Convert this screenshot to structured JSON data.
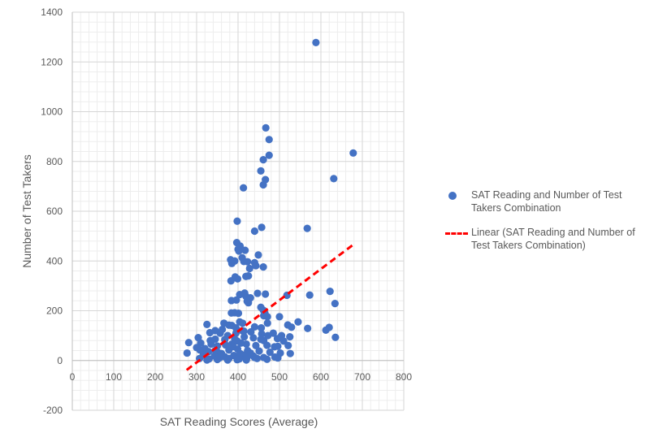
{
  "chart_data": {
    "type": "scatter",
    "title": "",
    "xlabel": "SAT Reading Scores (Average)",
    "ylabel": "Number of Test Takers",
    "xlim": [
      0,
      800
    ],
    "ylim": [
      -200,
      1400
    ],
    "x_ticks": [
      "0",
      "100",
      "200",
      "300",
      "400",
      "500",
      "600",
      "700",
      "800"
    ],
    "y_ticks": [
      "-200",
      "0",
      "200",
      "400",
      "600",
      "800",
      "1000",
      "1200",
      "1400"
    ],
    "grid": true,
    "legend_position": "right",
    "series": [
      {
        "name": "SAT Reading and Number of Test Takers Combination",
        "color": "#4472C4",
        "marker": "circle",
        "points": [
          [
            588,
            1278
          ],
          [
            678,
            834
          ],
          [
            631,
            731
          ],
          [
            467,
            935
          ],
          [
            475,
            888
          ],
          [
            475,
            825
          ],
          [
            461,
            807
          ],
          [
            455,
            762
          ],
          [
            466,
            727
          ],
          [
            461,
            706
          ],
          [
            413,
            694
          ],
          [
            398,
            560
          ],
          [
            567,
            531
          ],
          [
            457,
            535
          ],
          [
            440,
            520
          ],
          [
            397,
            474
          ],
          [
            405,
            460
          ],
          [
            400,
            447
          ],
          [
            417,
            443
          ],
          [
            402,
            440
          ],
          [
            449,
            424
          ],
          [
            382,
            405
          ],
          [
            392,
            400
          ],
          [
            410,
            413
          ],
          [
            414,
            398
          ],
          [
            423,
            397
          ],
          [
            440,
            393
          ],
          [
            461,
            376
          ],
          [
            385,
            390
          ],
          [
            443,
            381
          ],
          [
            428,
            370
          ],
          [
            419,
            338
          ],
          [
            425,
            340
          ],
          [
            393,
            336
          ],
          [
            399,
            328
          ],
          [
            383,
            320
          ],
          [
            622,
            278
          ],
          [
            404,
            265
          ],
          [
            416,
            271
          ],
          [
            447,
            270
          ],
          [
            466,
            267
          ],
          [
            518,
            262
          ],
          [
            573,
            263
          ],
          [
            419,
            258
          ],
          [
            430,
            252
          ],
          [
            384,
            241
          ],
          [
            396,
            243
          ],
          [
            422,
            238
          ],
          [
            425,
            232
          ],
          [
            634,
            229
          ],
          [
            455,
            214
          ],
          [
            461,
            202
          ],
          [
            384,
            191
          ],
          [
            392,
            192
          ],
          [
            401,
            190
          ],
          [
            465,
            190
          ],
          [
            462,
            180
          ],
          [
            471,
            176
          ],
          [
            500,
            176
          ],
          [
            545,
            155
          ],
          [
            404,
            155
          ],
          [
            411,
            150
          ],
          [
            471,
            150
          ],
          [
            378,
            142
          ],
          [
            366,
            150
          ],
          [
            325,
            145
          ],
          [
            385,
            141
          ],
          [
            395,
            131
          ],
          [
            456,
            131
          ],
          [
            520,
            143
          ],
          [
            529,
            134
          ],
          [
            568,
            129
          ],
          [
            620,
            133
          ],
          [
            612,
            122
          ],
          [
            635,
            93
          ],
          [
            362,
            125
          ],
          [
            345,
            120
          ],
          [
            332,
            112
          ],
          [
            357,
            110
          ],
          [
            414,
            118
          ],
          [
            431,
            115
          ],
          [
            457,
            107
          ],
          [
            485,
            110
          ],
          [
            505,
            100
          ],
          [
            525,
            95
          ],
          [
            495,
            88
          ],
          [
            510,
            78
          ],
          [
            304,
            92
          ],
          [
            345,
            86
          ],
          [
            368,
            84
          ],
          [
            392,
            86
          ],
          [
            437,
            91
          ],
          [
            462,
            80
          ],
          [
            310,
            70
          ],
          [
            335,
            66
          ],
          [
            370,
            62
          ],
          [
            385,
            66
          ],
          [
            407,
            70
          ],
          [
            443,
            60
          ],
          [
            470,
            61
          ],
          [
            488,
            55
          ],
          [
            496,
            57
          ],
          [
            521,
            60
          ],
          [
            281,
            72
          ],
          [
            300,
            52
          ],
          [
            308,
            42
          ],
          [
            320,
            48
          ],
          [
            329,
            36
          ],
          [
            352,
            32
          ],
          [
            378,
            42
          ],
          [
            399,
            46
          ],
          [
            423,
            40
          ],
          [
            451,
            38
          ],
          [
            477,
            33
          ],
          [
            502,
            30
          ],
          [
            526,
            28
          ],
          [
            277,
            30
          ],
          [
            316,
            22
          ],
          [
            343,
            18
          ],
          [
            368,
            15
          ],
          [
            390,
            20
          ],
          [
            413,
            22
          ],
          [
            437,
            18
          ],
          [
            462,
            12
          ],
          [
            489,
            14
          ],
          [
            307,
            8
          ],
          [
            330,
            6
          ],
          [
            355,
            10
          ],
          [
            378,
            8
          ],
          [
            403,
            6
          ],
          [
            421,
            10
          ],
          [
            446,
            8
          ],
          [
            470,
            5
          ],
          [
            496,
            10
          ],
          [
            325,
            2
          ],
          [
            350,
            4
          ],
          [
            375,
            2
          ],
          [
            398,
            3
          ],
          [
            420,
            2
          ],
          [
            440,
            12
          ],
          [
            360,
            28
          ],
          [
            405,
            28
          ],
          [
            430,
            30
          ],
          [
            415,
            95
          ],
          [
            375,
            100
          ],
          [
            440,
            135
          ],
          [
            472,
            100
          ],
          [
            395,
            110
          ],
          [
            350,
            58
          ],
          [
            420,
            66
          ],
          [
            455,
            85
          ],
          [
            333,
            80
          ],
          [
            398,
            78
          ],
          [
            410,
            120
          ],
          [
            345,
            40
          ],
          [
            388,
            56
          ]
        ]
      },
      {
        "name": "Linear (SAT Reading and Number of Test Takers Combination)",
        "color": "#FF0000",
        "line": "dashed",
        "x_range": [
          276,
          680
        ],
        "y_range": [
          -38,
          468
        ]
      }
    ]
  }
}
